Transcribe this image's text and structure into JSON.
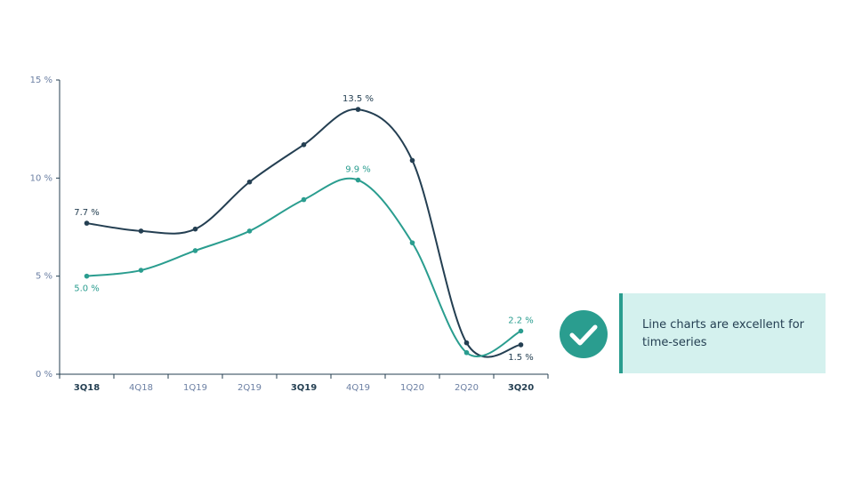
{
  "chart_data": {
    "type": "line",
    "categories": [
      "3Q18",
      "4Q18",
      "1Q19",
      "2Q19",
      "3Q19",
      "4Q19",
      "1Q20",
      "2Q20",
      "3Q20"
    ],
    "category_bold": [
      true,
      false,
      false,
      false,
      true,
      false,
      false,
      false,
      true
    ],
    "series": [
      {
        "color": "#243f52",
        "values": [
          7.7,
          7.3,
          7.4,
          9.8,
          11.7,
          13.5,
          10.9,
          1.6,
          1.5
        ],
        "value_labels": [
          "7.7 %",
          null,
          null,
          null,
          null,
          "13.5 %",
          null,
          null,
          "1.5 %"
        ]
      },
      {
        "color": "#2a9d8f",
        "values": [
          5.0,
          5.3,
          6.3,
          7.3,
          8.9,
          9.9,
          6.7,
          1.1,
          2.2
        ],
        "value_labels": [
          "5.0 %",
          null,
          null,
          null,
          null,
          "9.9 %",
          null,
          null,
          "2.2 %"
        ]
      }
    ],
    "ylim": [
      0,
      15
    ],
    "yticks": [
      {
        "value": 0,
        "label": "0 %"
      },
      {
        "value": 5,
        "label": "5 %"
      },
      {
        "value": 10,
        "label": "10 %"
      },
      {
        "value": 15,
        "label": "15 %"
      }
    ]
  },
  "callout": {
    "text": "Line charts are excellent for time-series"
  }
}
